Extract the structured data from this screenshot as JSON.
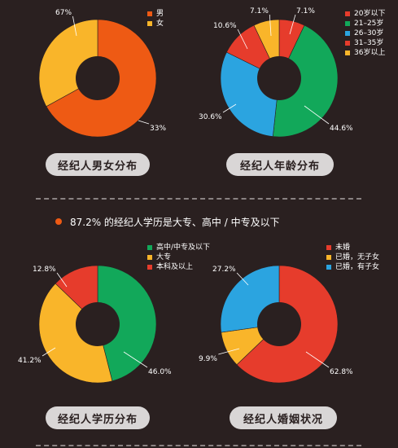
{
  "headline": "87.2% 的经纪人学历是大专、高中 / 中专及以下",
  "colors": {
    "background": "#2a2020",
    "orange": "#ee5a14",
    "yellow": "#f9b52a",
    "green": "#12a85a",
    "blue": "#2ba4e0",
    "red": "#e63c2c",
    "caption_bg": "#d9d6d6",
    "headline_dot": "#ee5a14"
  },
  "chart_data": [
    {
      "type": "pie",
      "title": "经纪人男女分布",
      "categories": [
        "男",
        "女"
      ],
      "values": [
        67,
        33
      ],
      "labels": [
        "67%",
        "33%"
      ],
      "colors": [
        "#ee5a14",
        "#f9b52a"
      ]
    },
    {
      "type": "pie",
      "title": "经纪人年龄分布",
      "categories": [
        "20岁以下",
        "21–25岁",
        "26–30岁",
        "31–35岁",
        "36岁以上"
      ],
      "values": [
        7.1,
        44.6,
        30.6,
        10.6,
        7.1
      ],
      "labels": [
        "7.1%",
        "44.6%",
        "30.6%",
        "10.6%",
        "7.1%"
      ],
      "colors": [
        "#e63c2c",
        "#12a85a",
        "#2ba4e0",
        "#e63c2c",
        "#f9b52a"
      ]
    },
    {
      "type": "pie",
      "title": "经纪人学历分布",
      "categories": [
        "高中/中专及以下",
        "大专",
        "本科及以上"
      ],
      "values": [
        46.0,
        41.2,
        12.8
      ],
      "labels": [
        "46.0%",
        "41.2%",
        "12.8%"
      ],
      "colors": [
        "#12a85a",
        "#f9b52a",
        "#e63c2c"
      ]
    },
    {
      "type": "pie",
      "title": "经纪人婚姻状况",
      "categories": [
        "未婚",
        "已婚，无子女",
        "已婚，有子女"
      ],
      "values": [
        62.8,
        9.9,
        27.2
      ],
      "labels": [
        "62.8%",
        "9.9%",
        "27.2%"
      ],
      "colors": [
        "#e63c2c",
        "#f9b52a",
        "#2ba4e0"
      ]
    }
  ]
}
